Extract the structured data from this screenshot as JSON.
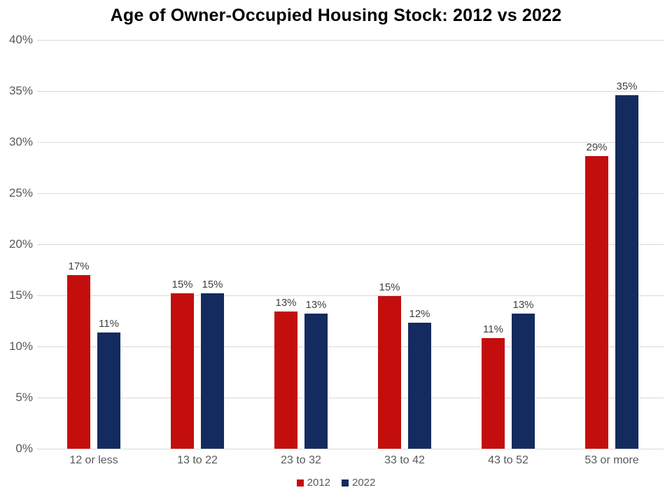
{
  "title": "Age of Owner-Occupied Housing Stock: 2012 vs 2022",
  "colors": {
    "series_2012": "#c40e0e",
    "series_2022": "#132b5e",
    "gridline": "#d9d9d9",
    "axis_text": "#595959",
    "data_label_text": "#404040",
    "title_text": "#000000",
    "background": "#ffffff"
  },
  "chart_data": {
    "type": "bar",
    "title": "Age of Owner-Occupied Housing Stock: 2012 vs 2022",
    "categories": [
      "12 or less",
      "13 to 22",
      "23 to 32",
      "33 to 42",
      "43 to 52",
      "53 or more"
    ],
    "series": [
      {
        "name": "2012",
        "color": "#c40e0e",
        "values": [
          17.0,
          15.2,
          13.4,
          14.9,
          10.8,
          28.6
        ],
        "data_labels": [
          "17%",
          "15%",
          "13%",
          "15%",
          "11%",
          "29%"
        ]
      },
      {
        "name": "2022",
        "color": "#132b5e",
        "values": [
          11.4,
          15.2,
          13.2,
          12.3,
          13.2,
          34.6
        ],
        "data_labels": [
          "11%",
          "15%",
          "13%",
          "12%",
          "13%",
          "35%"
        ]
      }
    ],
    "xlabel": "",
    "ylabel": "",
    "y_axis": {
      "min": 0,
      "max": 40,
      "step": 5,
      "tick_labels": [
        "0%",
        "5%",
        "10%",
        "15%",
        "20%",
        "25%",
        "30%",
        "35%",
        "40%"
      ]
    },
    "grid": true,
    "legend_position": "bottom",
    "legend": [
      "2012",
      "2022"
    ]
  }
}
